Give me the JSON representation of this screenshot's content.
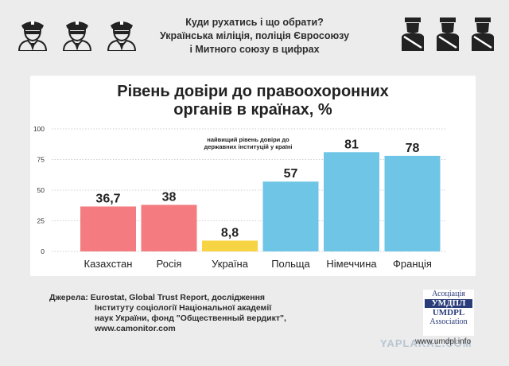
{
  "header": {
    "lines": [
      "Куди рухатись і що обрати?",
      "Українська міліція, поліція Євросоюзу",
      "і Митного союзу в цифрах"
    ]
  },
  "chart_data": {
    "type": "bar",
    "title": "Рівень довіри до правоохоронних органів в країнах, %",
    "title_lines": [
      "Рівень довіри до правоохоронних",
      "органів в країнах, %"
    ],
    "categories": [
      "Казахстан",
      "Росія",
      "Україна",
      "Польща",
      "Німеччина",
      "Франція"
    ],
    "values": [
      36.7,
      38,
      8.8,
      57,
      81,
      78
    ],
    "value_labels": [
      "36,7",
      "38",
      "8,8",
      "57",
      "81",
      "78"
    ],
    "bar_colors": [
      "#f47c81",
      "#f47c81",
      "#f7d443",
      "#6fc5e6",
      "#6fc5e6",
      "#6fc5e6"
    ],
    "ylim": [
      0,
      100
    ],
    "yticks": [
      0,
      25,
      50,
      75,
      100
    ],
    "xlabel": "",
    "ylabel": "",
    "grid": true,
    "annotation_lines": [
      "найвищий рівень довіри до",
      "державних інституцій у країні"
    ]
  },
  "footer": {
    "source_lines": [
      "Джерела: Eurostat, Global Trust Report, дослідження",
      "Інституту соціології Національної академії",
      "наук України, фонд \"Общественный вердикт\",",
      "www.camonitor.com"
    ],
    "logo_lines": [
      "Асоціація",
      "УМДПЛ",
      "UMDPL",
      "Association"
    ],
    "url": "www.umdpl.info",
    "watermark": "YAPLAKAL.COM"
  },
  "colors": {
    "pink": "#f47c81",
    "yellow": "#f7d443",
    "blue": "#6fc5e6"
  },
  "icons": [
    "police-officer-icon",
    "police-officer-silhouette-icon"
  ]
}
